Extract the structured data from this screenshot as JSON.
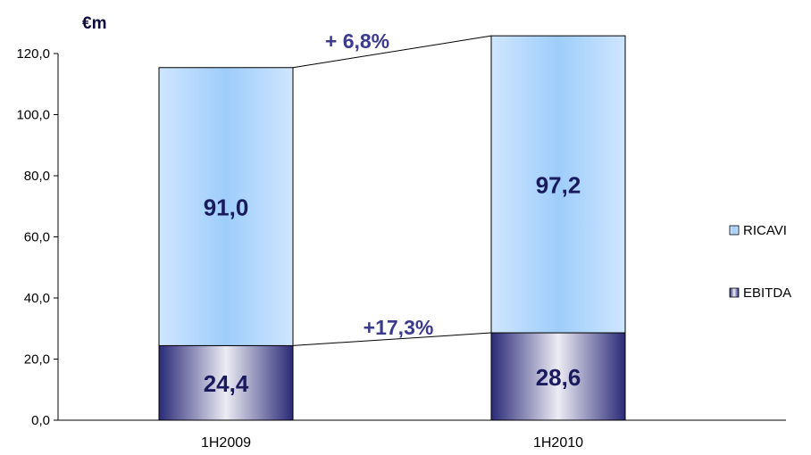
{
  "chart_data": {
    "type": "bar",
    "stacked": true,
    "unit_label": "€m",
    "categories": [
      "1H2009",
      "1H2010"
    ],
    "series": [
      {
        "name": "EBITDA",
        "values": [
          24.4,
          28.6
        ],
        "value_labels": [
          "24,4",
          "28,6"
        ],
        "color": "#2e2e7a"
      },
      {
        "name": "RICAVI",
        "values": [
          91.0,
          97.2
        ],
        "value_labels": [
          "91,0",
          "97,2"
        ],
        "color": "#a9d4ff"
      }
    ],
    "ylim": [
      0,
      120
    ],
    "yticks": [
      0,
      20,
      40,
      60,
      80,
      100,
      120
    ],
    "ytick_labels": [
      "0,0",
      "20,0",
      "40,0",
      "60,0",
      "80,0",
      "100,0",
      "120,0"
    ],
    "annotations": [
      {
        "text": "+ 6,8%",
        "refers_to": "RICAVI"
      },
      {
        "text": "+17,3%",
        "refers_to": "EBITDA"
      }
    ],
    "legend": {
      "position": "right",
      "entries": [
        "RICAVI",
        "EBITDA"
      ]
    },
    "grid": false
  }
}
